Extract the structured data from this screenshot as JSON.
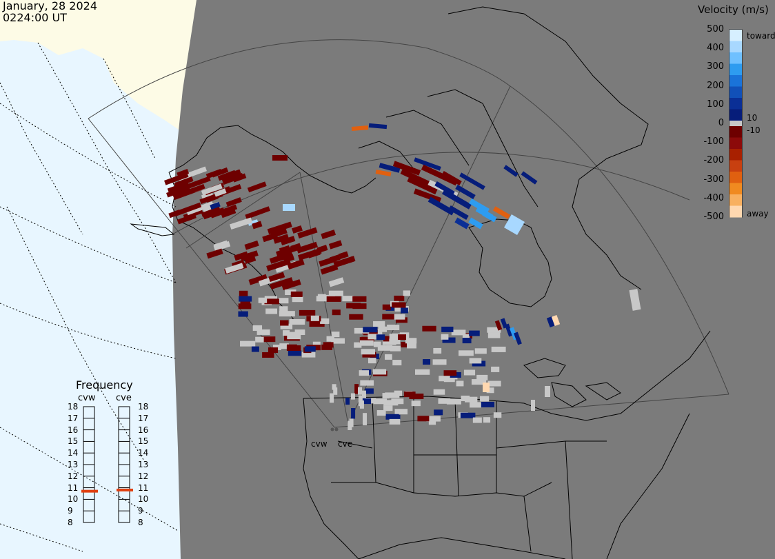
{
  "header": {
    "date": "January, 28 2024",
    "time": "0224:00 UT"
  },
  "velocity_legend": {
    "title": "Velocity (m/s)",
    "ticks": [
      "500",
      "400",
      "300",
      "200",
      "100",
      "0",
      "-100",
      "-200",
      "-300",
      "-400",
      "-500"
    ],
    "toward_label": "toward",
    "away_label": "away",
    "plus_ten_label": "10",
    "minus_ten_label": "-10",
    "colors": {
      "toward": [
        "#d6efff",
        "#a8d8ff",
        "#6fc0ff",
        "#2e9cf0",
        "#1a73d9",
        "#1150b8",
        "#0a2f96",
        "#061d7a"
      ],
      "away": [
        "#6e0000",
        "#8c0a0a",
        "#a82000",
        "#c84010",
        "#e06010",
        "#f08a20",
        "#f8b060",
        "#ffd8b0"
      ],
      "ground_scatter": "#c8c8c8"
    }
  },
  "frequency_panel": {
    "title": "Frequency",
    "radars": [
      {
        "name": "cvw",
        "freq_mhz": 10.7
      },
      {
        "name": "cve",
        "freq_mhz": 10.8
      }
    ],
    "scale": [
      "18",
      "17",
      "16",
      "15",
      "14",
      "13",
      "12",
      "11",
      "10",
      "9",
      "8"
    ]
  },
  "map": {
    "radar_sites": [
      {
        "name": "cvw"
      },
      {
        "name": "cve"
      }
    ],
    "colors": {
      "night": "#7b7b7b",
      "ocean_day": "#e8f6ff",
      "land_day": "#fdfbe6",
      "coast": "#000000",
      "fov_line": "#555555"
    }
  }
}
